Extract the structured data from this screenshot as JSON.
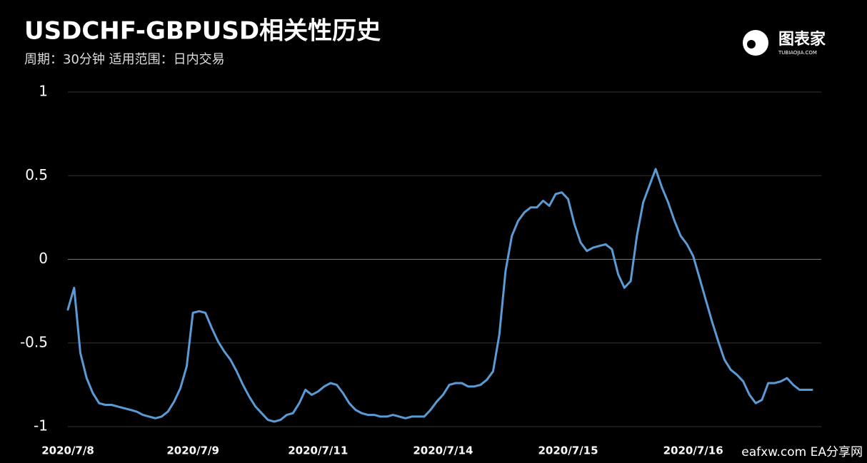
{
  "chart_data": {
    "type": "line",
    "title": "USDCHF-GBPUSD相关性历史",
    "subtitle": "周期：30分钟  适用范围：日内交易",
    "logo": {
      "name": "图表家",
      "site": "TUBIAOJIA.COM"
    },
    "watermark": "eafxw.com  EA分享网",
    "categories": [
      "2020/7/8",
      null,
      null,
      null,
      null,
      null,
      null,
      null,
      null,
      null,
      null,
      null,
      null,
      null,
      null,
      null,
      null,
      null,
      null,
      null,
      "2020/7/9",
      null,
      null,
      null,
      null,
      null,
      null,
      null,
      null,
      null,
      null,
      null,
      null,
      null,
      null,
      null,
      null,
      null,
      null,
      null,
      "2020/7/11",
      null,
      null,
      null,
      null,
      null,
      null,
      null,
      null,
      null,
      null,
      null,
      null,
      null,
      null,
      null,
      null,
      null,
      null,
      null,
      "2020/7/14",
      null,
      null,
      null,
      null,
      null,
      null,
      null,
      null,
      null,
      null,
      null,
      null,
      null,
      null,
      null,
      null,
      null,
      null,
      null,
      "2020/7/15",
      null,
      null,
      null,
      null,
      null,
      null,
      null,
      null,
      null,
      null,
      null,
      null,
      null,
      null,
      null,
      null,
      null,
      null,
      null,
      "2020/7/16",
      null,
      null,
      null,
      null,
      null,
      null,
      null,
      null,
      null,
      null,
      null,
      null,
      null,
      null,
      null,
      null,
      null,
      null,
      null
    ],
    "series": [
      {
        "name": "USDCHF-GBPUSD",
        "color": "#5b9bd5",
        "values": [
          -0.3,
          -0.17,
          -0.56,
          -0.71,
          -0.8,
          -0.86,
          -0.87,
          -0.87,
          -0.88,
          -0.89,
          -0.9,
          -0.91,
          -0.93,
          -0.94,
          -0.95,
          -0.94,
          -0.91,
          -0.85,
          -0.77,
          -0.64,
          -0.32,
          -0.31,
          -0.32,
          -0.41,
          -0.49,
          -0.55,
          -0.6,
          -0.67,
          -0.75,
          -0.82,
          -0.88,
          -0.92,
          -0.96,
          -0.97,
          -0.96,
          -0.93,
          -0.92,
          -0.86,
          -0.78,
          -0.81,
          -0.79,
          -0.76,
          -0.74,
          -0.75,
          -0.8,
          -0.86,
          -0.9,
          -0.92,
          -0.93,
          -0.93,
          -0.94,
          -0.94,
          -0.93,
          -0.94,
          -0.95,
          -0.94,
          -0.94,
          -0.94,
          -0.9,
          -0.85,
          -0.81,
          -0.75,
          -0.74,
          -0.74,
          -0.76,
          -0.76,
          -0.75,
          -0.72,
          -0.67,
          -0.45,
          -0.07,
          0.14,
          0.23,
          0.28,
          0.31,
          0.31,
          0.35,
          0.32,
          0.39,
          0.4,
          0.36,
          0.21,
          0.1,
          0.05,
          0.07,
          0.08,
          0.09,
          0.06,
          -0.09,
          -0.17,
          -0.13,
          0.14,
          0.34,
          0.44,
          0.54,
          0.43,
          0.34,
          0.23,
          0.14,
          0.09,
          0.02,
          -0.11,
          -0.24,
          -0.37,
          -0.49,
          -0.6,
          -0.66,
          -0.69,
          -0.73,
          -0.81,
          -0.86,
          -0.84,
          -0.74,
          -0.74,
          -0.73,
          -0.71,
          -0.75,
          -0.78,
          -0.78,
          -0.78
        ]
      }
    ],
    "ylim": [
      -1,
      1
    ],
    "yticks": [
      -1,
      -0.5,
      0,
      0.5,
      1
    ],
    "grid": true
  }
}
